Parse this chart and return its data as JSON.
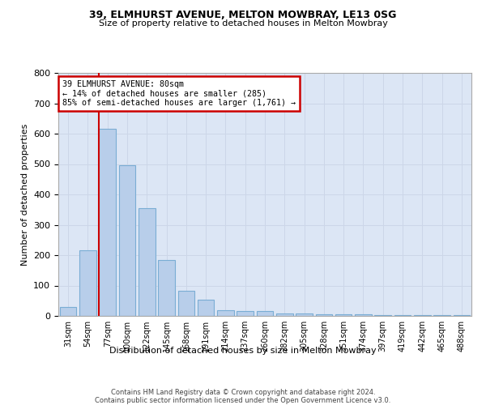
{
  "title1": "39, ELMHURST AVENUE, MELTON MOWBRAY, LE13 0SG",
  "title2": "Size of property relative to detached houses in Melton Mowbray",
  "xlabel": "Distribution of detached houses by size in Melton Mowbray",
  "ylabel": "Number of detached properties",
  "categories": [
    "31sqm",
    "54sqm",
    "77sqm",
    "100sqm",
    "122sqm",
    "145sqm",
    "168sqm",
    "191sqm",
    "214sqm",
    "237sqm",
    "260sqm",
    "282sqm",
    "305sqm",
    "328sqm",
    "351sqm",
    "374sqm",
    "397sqm",
    "419sqm",
    "442sqm",
    "465sqm",
    "488sqm"
  ],
  "values": [
    30,
    215,
    615,
    495,
    355,
    185,
    83,
    53,
    20,
    17,
    15,
    8,
    7,
    6,
    5,
    5,
    3,
    3,
    3,
    2,
    2
  ],
  "bar_color": "#B8CEEA",
  "bar_edge_color": "#7AADD4",
  "vline_color": "#cc0000",
  "annotation_text_line1": "39 ELMHURST AVENUE: 80sqm",
  "annotation_text_line2": "← 14% of detached houses are smaller (285)",
  "annotation_text_line3": "85% of semi-detached houses are larger (1,761) →",
  "annotation_box_color": "#ffffff",
  "annotation_border_color": "#cc0000",
  "footer_line1": "Contains HM Land Registry data © Crown copyright and database right 2024.",
  "footer_line2": "Contains public sector information licensed under the Open Government Licence v3.0.",
  "ylim": [
    0,
    800
  ],
  "yticks": [
    0,
    100,
    200,
    300,
    400,
    500,
    600,
    700,
    800
  ],
  "grid_color": "#ccd6e8",
  "bg_color": "#dce6f5"
}
